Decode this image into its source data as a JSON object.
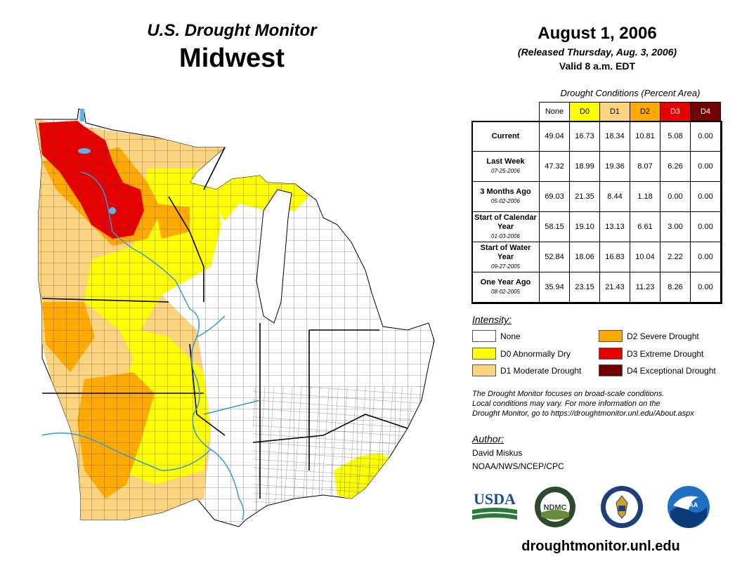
{
  "header": {
    "title_line1": "U.S. Drought Monitor",
    "title_line2": "Midwest",
    "date": "August 1, 2006",
    "released": "(Released Thursday, Aug. 3, 2006)",
    "valid": "Valid 8 a.m. EDT"
  },
  "conditions": {
    "title": "Drought Conditions (Percent Area)",
    "columns": [
      "None",
      "D0",
      "D1",
      "D2",
      "D3",
      "D4"
    ],
    "column_colors": [
      "#ffffff",
      "#ffff00",
      "#fcd37f",
      "#ffaa00",
      "#e60000",
      "#730000"
    ],
    "rows": [
      {
        "label": "Current",
        "date": "",
        "values": [
          "49.04",
          "16.73",
          "18.34",
          "10.81",
          "5.08",
          "0.00"
        ]
      },
      {
        "label": "Last Week",
        "date": "07-25-2006",
        "values": [
          "47.32",
          "18.99",
          "19.36",
          "8.07",
          "6.26",
          "0.00"
        ]
      },
      {
        "label": "3 Months Ago",
        "date": "05-02-2006",
        "values": [
          "69.03",
          "21.35",
          "8.44",
          "1.18",
          "0.00",
          "0.00"
        ]
      },
      {
        "label": "Start of Calendar Year",
        "date": "01-03-2006",
        "values": [
          "58.15",
          "19.10",
          "13.13",
          "6.61",
          "3.00",
          "0.00"
        ]
      },
      {
        "label": "Start of Water Year",
        "date": "09-27-2005",
        "values": [
          "52.84",
          "18.06",
          "16.83",
          "10.04",
          "2.22",
          "0.00"
        ]
      },
      {
        "label": "One Year Ago",
        "date": "08-02-2005",
        "values": [
          "35.94",
          "23.15",
          "21.43",
          "11.23",
          "8.26",
          "0.00"
        ]
      }
    ]
  },
  "legend": {
    "title": "Intensity:",
    "items": [
      {
        "label": "None",
        "color": "#ffffff"
      },
      {
        "label": "D0 Abnormally Dry",
        "color": "#ffff00"
      },
      {
        "label": "D1 Moderate Drought",
        "color": "#fcd37f"
      },
      {
        "label": "D2 Severe Drought",
        "color": "#ffaa00"
      },
      {
        "label": "D3 Extreme Drought",
        "color": "#e60000"
      },
      {
        "label": "D4 Exceptional Drought",
        "color": "#730000"
      }
    ]
  },
  "note": {
    "line1": "The Drought Monitor focuses on broad-scale conditions.",
    "line2": "Local conditions may vary. For more information on the",
    "line3": "Drought Monitor, go to https://droughtmonitor.unl.edu/About.aspx"
  },
  "author": {
    "title": "Author:",
    "name": "David Miskus",
    "org": "NOAA/NWS/NCEP/CPC"
  },
  "logos": {
    "usda": "USDA",
    "ndmc": "NDMC",
    "noaa": "NOAA"
  },
  "footer": {
    "url": "droughtmonitor.unl.edu"
  },
  "colors": {
    "water": "#5ab4e6",
    "county_line": "#333333"
  }
}
